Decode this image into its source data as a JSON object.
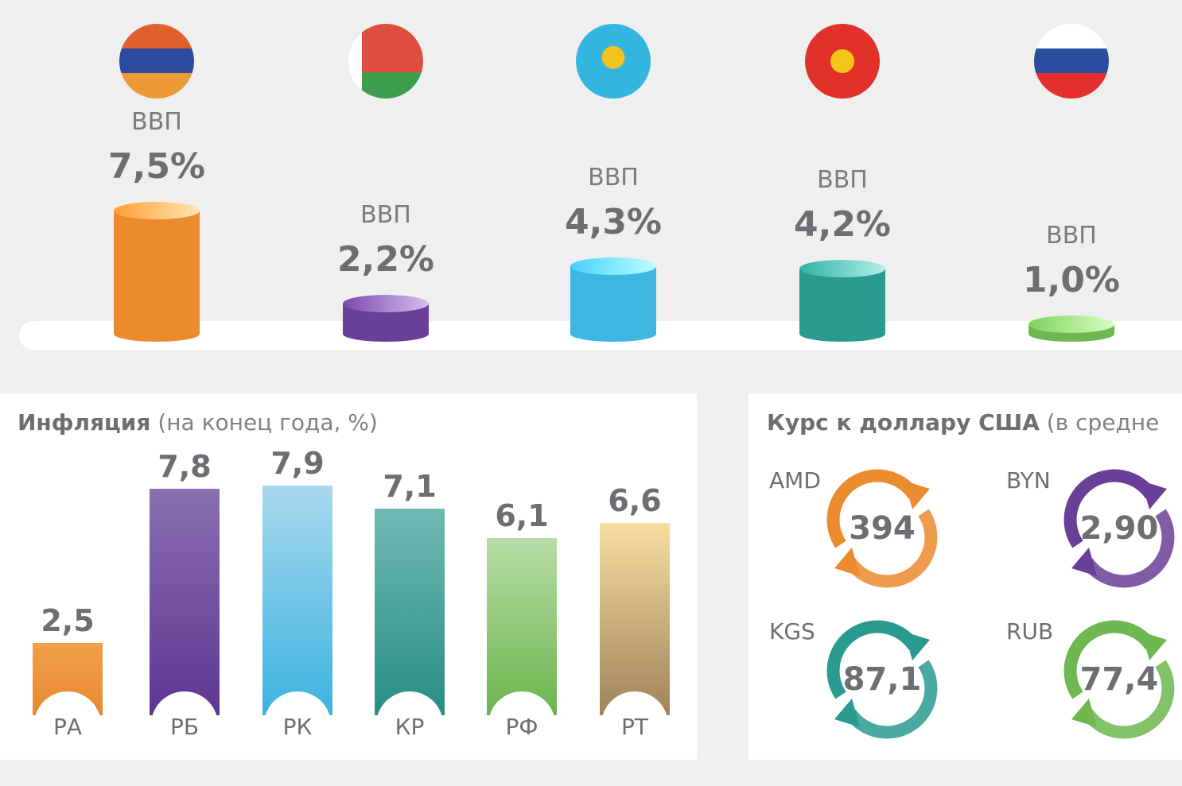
{
  "chart_data": [
    {
      "type": "bar",
      "title": "ВВП",
      "categories": [
        "Армения",
        "Беларусь",
        "Казахстан",
        "Кыргызстан",
        "Россия"
      ],
      "label": "ВВП",
      "values": [
        7.5,
        2.2,
        4.3,
        4.2,
        1.0
      ],
      "value_labels": [
        "7,5%",
        "2,2%",
        "4,3%",
        "4,2%",
        "1,0%"
      ],
      "colors": [
        "#ec8a2e",
        "#6a3f97",
        "#3db6e3",
        "#2a9a90",
        "#6fb74f"
      ]
    },
    {
      "type": "bar",
      "title": "Инфляция",
      "subtitle": "(на конец года, %)",
      "categories": [
        "РА",
        "РБ",
        "РК",
        "КР",
        "РФ",
        "РТ"
      ],
      "values": [
        2.5,
        7.8,
        7.9,
        7.1,
        6.1,
        6.6
      ],
      "value_labels": [
        "2,5",
        "7,8",
        "7,9",
        "7,1",
        "6,1",
        "6,6"
      ],
      "colors": [
        [
          "#f0a04b",
          "#e8892f"
        ],
        [
          "#8a6fb0",
          "#5e3592"
        ],
        [
          "#a7d8ee",
          "#3bb3e0"
        ],
        [
          "#6fbab3",
          "#278d86"
        ],
        [
          "#b7dca6",
          "#6cb54d"
        ],
        [
          "#f7dea0",
          "#a0825a"
        ]
      ]
    },
    {
      "type": "table",
      "title": "Курс к доллару США",
      "subtitle": "(в средне",
      "items": [
        {
          "code": "AMD",
          "value": "394",
          "color": "#ec8a2e"
        },
        {
          "code": "BYN",
          "value": "2,90",
          "color": "#6a3f97"
        },
        {
          "code": "KGS",
          "value": "87,1",
          "color": "#2a9a90"
        },
        {
          "code": "RUB",
          "value": "77,4",
          "color": "#6fb74f"
        }
      ]
    }
  ]
}
